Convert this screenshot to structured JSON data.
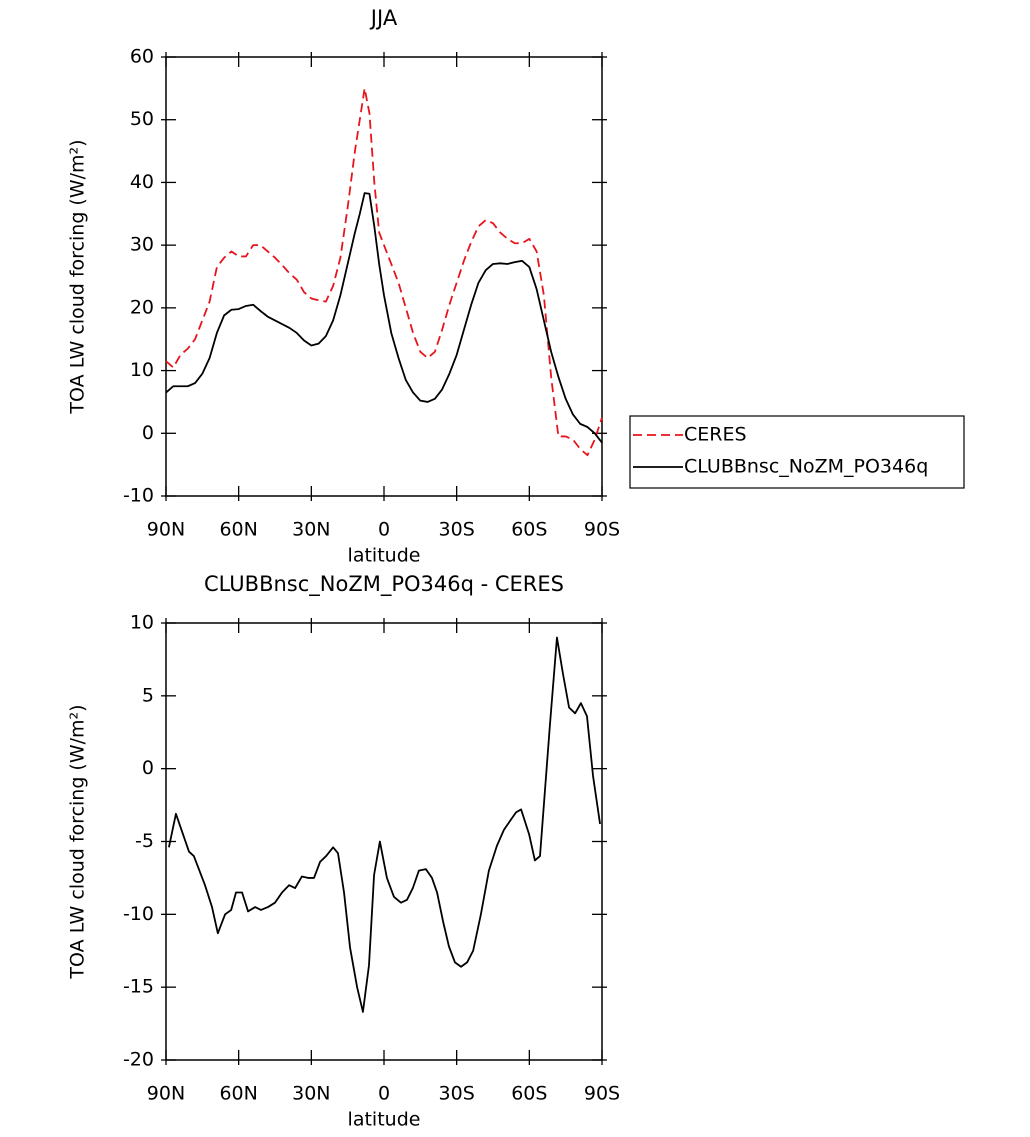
{
  "chart_data": [
    {
      "type": "line",
      "title": "JJA",
      "xlabel": "latitude",
      "ylabel": "TOA LW cloud forcing (W/m²)",
      "x": [
        90,
        87,
        84,
        81,
        78,
        75,
        72,
        69,
        66,
        63,
        60,
        57,
        54,
        51,
        48,
        45,
        42,
        39,
        36,
        33,
        30,
        27,
        24,
        21,
        18,
        15,
        12,
        10,
        8,
        6,
        4,
        2,
        0,
        -3,
        -6,
        -9,
        -12,
        -15,
        -18,
        -21,
        -24,
        -27,
        -30,
        -33,
        -36,
        -39,
        -42,
        -45,
        -48,
        -51,
        -54,
        -57,
        -60,
        -63,
        -66,
        -69,
        -72,
        -75,
        -78,
        -81,
        -84,
        -87,
        -90
      ],
      "series": [
        {
          "name": "CERES",
          "color": "#e8141c",
          "line_style": "dashed",
          "values": [
            11.5,
            10.5,
            12.5,
            13.5,
            15,
            18,
            21,
            26.5,
            28,
            29,
            28.2,
            28.2,
            30,
            30,
            29,
            28,
            26.8,
            25.5,
            24.5,
            22.5,
            21.5,
            21.2,
            21,
            23.5,
            28,
            36,
            45,
            50,
            55,
            51,
            40,
            32,
            30,
            27,
            24,
            20,
            16,
            13,
            12,
            13,
            16.5,
            20.5,
            24,
            27.5,
            30.5,
            33,
            34,
            33.5,
            32,
            31,
            30.3,
            30.3,
            31,
            29,
            22,
            9,
            -0.5,
            -0.5,
            -1,
            -2.5,
            -3.5,
            -1,
            2.5
          ]
        },
        {
          "name": "CLUBBnsc_NoZM_PO346q",
          "color": "#000000",
          "line_style": "solid",
          "values": [
            6.5,
            7.5,
            7.5,
            7.5,
            8,
            9.5,
            12,
            16,
            18.8,
            19.7,
            19.8,
            20.3,
            20.5,
            19.5,
            18.6,
            18,
            17.4,
            16.8,
            16,
            14.8,
            14,
            14.3,
            15.5,
            18,
            22,
            27,
            32,
            35,
            38.3,
            38.2,
            33,
            27,
            22,
            16,
            12,
            8.5,
            6.5,
            5.2,
            5,
            5.5,
            7,
            9.5,
            12.5,
            16.5,
            20.5,
            24,
            26,
            27,
            27.1,
            27,
            27.3,
            27.5,
            26.5,
            23,
            18,
            13,
            9,
            5.5,
            3,
            1.5,
            1,
            0,
            -1.5
          ]
        }
      ],
      "xlim": [
        90,
        -90
      ],
      "xticks": [
        {
          "value": 90,
          "label": "90N"
        },
        {
          "value": 60,
          "label": "60N"
        },
        {
          "value": 30,
          "label": "30N"
        },
        0,
        {
          "value": -30,
          "label": "30S"
        },
        {
          "value": -60,
          "label": "60S"
        },
        {
          "value": -90,
          "label": "90S"
        }
      ],
      "ylim": [
        -10,
        60
      ],
      "yticks": [
        -10,
        0,
        10,
        20,
        30,
        40,
        50,
        60
      ],
      "legend": "right"
    },
    {
      "type": "line",
      "title": "CLUBBnsc_NoZM_PO346q - CERES",
      "xlabel": "latitude",
      "ylabel": "TOA LW cloud forcing (W/m²)",
      "x": [
        88.8,
        85.9,
        83,
        80.5,
        78.5,
        73.9,
        71,
        68.6,
        65.6,
        63.1,
        61.1,
        58.6,
        56.1,
        53.2,
        50.8,
        47.9,
        45,
        42.1,
        39.2,
        36.7,
        33.9,
        31.4,
        28.9,
        26.4,
        23.9,
        21,
        19,
        16.5,
        14,
        11.1,
        8.7,
        6.2,
        4.1,
        1.7,
        -1.2,
        -4.1,
        -7,
        -9.5,
        -11.9,
        -14.4,
        -17.3,
        -19.8,
        -21.9,
        -24.4,
        -26.8,
        -29.3,
        -31.8,
        -34.3,
        -36.8,
        -40,
        -43.3,
        -46.6,
        -49.5,
        -52.4,
        -54.5,
        -56.6,
        -59.9,
        -62.3,
        -64.4,
        -68.5,
        -71.4,
        -73.9,
        -76.4,
        -78.9,
        -81.3,
        -83.8,
        -86.3,
        -89.2
      ],
      "values": [
        -5.4,
        -3.1,
        -4.5,
        -5.7,
        -6,
        -8,
        -9.5,
        -11.3,
        -10,
        -9.7,
        -8.5,
        -8.5,
        -9.8,
        -9.5,
        -9.7,
        -9.5,
        -9.2,
        -8.5,
        -8,
        -8.2,
        -7.4,
        -7.5,
        -7.5,
        -6.4,
        -6,
        -5.4,
        -5.8,
        -8.5,
        -12.3,
        -15,
        -16.7,
        -13.5,
        -7.3,
        -5,
        -7.5,
        -8.8,
        -9.2,
        -9,
        -8.2,
        -7,
        -6.9,
        -7.5,
        -8.5,
        -10.5,
        -12.2,
        -13.3,
        -13.6,
        -13.3,
        -12.5,
        -10,
        -7,
        -5.3,
        -4.2,
        -3.5,
        -3,
        -2.8,
        -4.5,
        -6.3,
        -6,
        3,
        9,
        6.5,
        4.2,
        3.8,
        4.5,
        3.6,
        -0.5,
        -3.8
      ],
      "color": "#000000",
      "xlim": [
        90,
        -90
      ],
      "xticks": [
        {
          "value": 90,
          "label": "90N"
        },
        {
          "value": 60,
          "label": "60N"
        },
        {
          "value": 30,
          "label": "30N"
        },
        0,
        {
          "value": -30,
          "label": "30S"
        },
        {
          "value": -60,
          "label": "60S"
        },
        {
          "value": -90,
          "label": "90S"
        }
      ],
      "ylim": [
        -20,
        10
      ],
      "yticks": [
        -20,
        -15,
        -10,
        -5,
        0,
        5,
        10
      ]
    }
  ]
}
